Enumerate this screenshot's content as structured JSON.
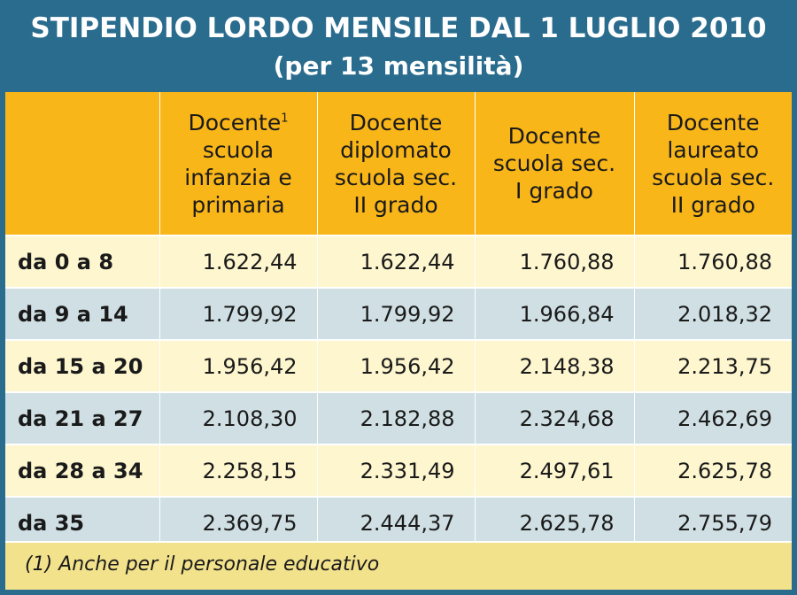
{
  "title": "STIPENDIO LORDO MENSILE DAL 1 LUGLIO 2010",
  "subtitle": "(per 13 mensilità)",
  "colors": {
    "header_bar": "#2a6c8e",
    "column_header": "#f9b619",
    "row_cream": "#fdf6cf",
    "row_blue": "#cfdfe4",
    "footnote_bg": "#f3e28c"
  },
  "chart_data": {
    "type": "table",
    "columns": [
      {
        "lines": [
          "Docente",
          "scuola",
          "infanzia e",
          "primaria"
        ],
        "footnote_mark": "1"
      },
      {
        "lines": [
          "Docente",
          "diplomato",
          "scuola sec.",
          "II grado"
        ]
      },
      {
        "lines": [
          "Docente",
          "scuola sec.",
          "I grado"
        ]
      },
      {
        "lines": [
          "Docente",
          "laureato",
          "scuola sec.",
          "II grado"
        ]
      }
    ],
    "rows": [
      {
        "label": "da 0 a 8",
        "values": [
          "1.622,44",
          "1.622,44",
          "1.760,88",
          "1.760,88"
        ]
      },
      {
        "label": "da 9 a 14",
        "values": [
          "1.799,92",
          "1.799,92",
          "1.966,84",
          "2.018,32"
        ]
      },
      {
        "label": "da 15 a 20",
        "values": [
          "1.956,42",
          "1.956,42",
          "2.148,38",
          "2.213,75"
        ]
      },
      {
        "label": "da 21 a 27",
        "values": [
          "2.108,30",
          "2.182,88",
          "2.324,68",
          "2.462,69"
        ]
      },
      {
        "label": "da 28 a 34",
        "values": [
          "2.258,15",
          "2.331,49",
          "2.497,61",
          "2.625,78"
        ]
      },
      {
        "label": "da 35",
        "values": [
          "2.369,75",
          "2.444,37",
          "2.625,78",
          "2.755,79"
        ]
      }
    ],
    "footnote": "(1) Anche per il personale educativo"
  }
}
